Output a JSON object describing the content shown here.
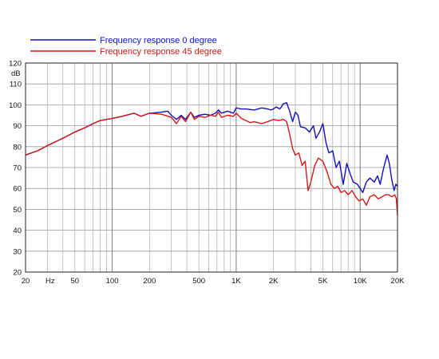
{
  "chart_data": {
    "type": "line",
    "title": "",
    "xlabel": "Hz",
    "ylabel": "dB",
    "xscale": "log",
    "xlim": [
      20,
      20000
    ],
    "ylim": [
      20,
      120
    ],
    "grid": true,
    "legend_position": "top-left",
    "x_ticks": [
      {
        "value": 20,
        "label": "20"
      },
      {
        "value": 50,
        "label": "50"
      },
      {
        "value": 100,
        "label": "100"
      },
      {
        "value": 200,
        "label": "200"
      },
      {
        "value": 500,
        "label": "500"
      },
      {
        "value": 1000,
        "label": "1K"
      },
      {
        "value": 2000,
        "label": "2K"
      },
      {
        "value": 5000,
        "label": "5K"
      },
      {
        "value": 10000,
        "label": "10K"
      },
      {
        "value": 20000,
        "label": "20K"
      }
    ],
    "y_ticks": [
      20,
      30,
      40,
      50,
      60,
      70,
      80,
      90,
      100,
      110,
      120
    ],
    "series": [
      {
        "name": "Frequency response 0 degree",
        "color": "#1010c0",
        "points": [
          [
            20,
            76
          ],
          [
            25,
            78
          ],
          [
            30,
            80.5
          ],
          [
            40,
            84
          ],
          [
            50,
            87
          ],
          [
            60,
            89
          ],
          [
            70,
            91
          ],
          [
            80,
            92.5
          ],
          [
            100,
            93.5
          ],
          [
            120,
            94.5
          ],
          [
            150,
            96
          ],
          [
            170,
            94.5
          ],
          [
            200,
            96
          ],
          [
            250,
            96.5
          ],
          [
            280,
            97
          ],
          [
            300,
            95
          ],
          [
            330,
            93
          ],
          [
            360,
            95
          ],
          [
            390,
            93
          ],
          [
            430,
            96.5
          ],
          [
            460,
            94
          ],
          [
            500,
            95
          ],
          [
            560,
            95.5
          ],
          [
            620,
            95
          ],
          [
            680,
            96
          ],
          [
            720,
            97.5
          ],
          [
            760,
            96
          ],
          [
            850,
            97
          ],
          [
            950,
            96
          ],
          [
            1000,
            98.5
          ],
          [
            1100,
            98
          ],
          [
            1200,
            98
          ],
          [
            1400,
            97.5
          ],
          [
            1600,
            98.5
          ],
          [
            1800,
            98
          ],
          [
            1900,
            97.5
          ],
          [
            2000,
            98
          ],
          [
            2100,
            99
          ],
          [
            2250,
            98
          ],
          [
            2400,
            100.5
          ],
          [
            2550,
            101
          ],
          [
            2700,
            97
          ],
          [
            2850,
            92
          ],
          [
            3000,
            96.5
          ],
          [
            3150,
            95
          ],
          [
            3300,
            89.5
          ],
          [
            3600,
            89
          ],
          [
            3900,
            87
          ],
          [
            4200,
            90
          ],
          [
            4400,
            84
          ],
          [
            4700,
            87
          ],
          [
            5000,
            91
          ],
          [
            5300,
            82
          ],
          [
            5600,
            77
          ],
          [
            6000,
            78
          ],
          [
            6400,
            70
          ],
          [
            6800,
            73
          ],
          [
            7300,
            62
          ],
          [
            7800,
            72
          ],
          [
            8300,
            67
          ],
          [
            8800,
            63
          ],
          [
            9500,
            62
          ],
          [
            10500,
            58
          ],
          [
            11200,
            63
          ],
          [
            12000,
            65
          ],
          [
            13000,
            63
          ],
          [
            13800,
            66
          ],
          [
            14500,
            62
          ],
          [
            15500,
            70
          ],
          [
            16500,
            76
          ],
          [
            17200,
            72
          ],
          [
            18000,
            64
          ],
          [
            18800,
            59
          ],
          [
            19400,
            62
          ],
          [
            20000,
            61
          ]
        ]
      },
      {
        "name": "Frequency response 45 degree",
        "color": "#d01818",
        "points": [
          [
            20,
            76
          ],
          [
            25,
            78
          ],
          [
            30,
            80.5
          ],
          [
            40,
            84
          ],
          [
            50,
            87
          ],
          [
            60,
            89
          ],
          [
            70,
            91
          ],
          [
            80,
            92.5
          ],
          [
            100,
            93.5
          ],
          [
            120,
            94.5
          ],
          [
            150,
            96
          ],
          [
            170,
            94.5
          ],
          [
            200,
            96
          ],
          [
            250,
            95.5
          ],
          [
            300,
            94
          ],
          [
            330,
            91
          ],
          [
            360,
            94.5
          ],
          [
            390,
            92
          ],
          [
            430,
            96.5
          ],
          [
            460,
            93
          ],
          [
            500,
            94.5
          ],
          [
            560,
            94
          ],
          [
            620,
            95
          ],
          [
            680,
            94.5
          ],
          [
            720,
            96.5
          ],
          [
            760,
            94
          ],
          [
            850,
            95
          ],
          [
            950,
            94.5
          ],
          [
            1000,
            96
          ],
          [
            1100,
            93.5
          ],
          [
            1200,
            92.5
          ],
          [
            1300,
            91.5
          ],
          [
            1400,
            92
          ],
          [
            1600,
            91
          ],
          [
            1800,
            92
          ],
          [
            2000,
            93
          ],
          [
            2200,
            92.5
          ],
          [
            2400,
            93
          ],
          [
            2550,
            92
          ],
          [
            2700,
            86
          ],
          [
            2850,
            79
          ],
          [
            3000,
            76
          ],
          [
            3200,
            77
          ],
          [
            3400,
            71
          ],
          [
            3600,
            73
          ],
          [
            3800,
            59
          ],
          [
            4000,
            63
          ],
          [
            4300,
            71
          ],
          [
            4600,
            74.5
          ],
          [
            5000,
            73
          ],
          [
            5400,
            68
          ],
          [
            5800,
            62
          ],
          [
            6200,
            60
          ],
          [
            6600,
            61
          ],
          [
            7000,
            58
          ],
          [
            7500,
            59
          ],
          [
            8000,
            57
          ],
          [
            8600,
            59
          ],
          [
            9200,
            56
          ],
          [
            9800,
            54
          ],
          [
            10500,
            55
          ],
          [
            11200,
            52
          ],
          [
            12000,
            56
          ],
          [
            13000,
            57
          ],
          [
            14000,
            55
          ],
          [
            15000,
            56
          ],
          [
            16000,
            57
          ],
          [
            17000,
            57
          ],
          [
            18000,
            56
          ],
          [
            19000,
            57
          ],
          [
            19600,
            55
          ],
          [
            20000,
            47
          ]
        ]
      }
    ]
  }
}
